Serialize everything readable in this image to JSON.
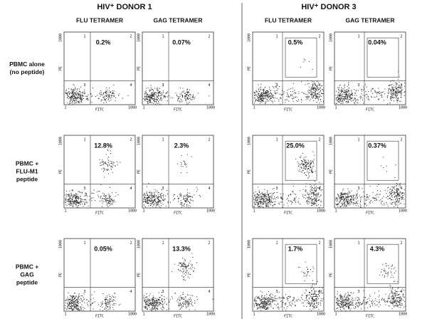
{
  "donors": [
    {
      "title": "HIV⁺ DONOR 1",
      "columns": [
        "FLU TETRAMER",
        "GAG TETRAMER"
      ]
    },
    {
      "title": "HIV⁺ DONOR 3",
      "columns": [
        "FLU TETRAMER",
        "GAG TETRAMER"
      ]
    }
  ],
  "rows": [
    {
      "label": [
        "PBMC alone",
        "(no peptide)"
      ],
      "percents": [
        "0.2%",
        "0.07%",
        "0.5%",
        "0.04%"
      ]
    },
    {
      "label": [
        "PBMC +",
        "FLU-M1",
        "peptide"
      ],
      "percents": [
        "12.8%",
        "2.3%",
        "25.0%",
        "0.37%"
      ]
    },
    {
      "label": [
        "PBMC +",
        "GAG",
        "peptide"
      ],
      "percents": [
        "0.05%",
        "13.3%",
        "1.7%",
        "4.3%"
      ]
    }
  ],
  "axis": {
    "x_label": "FITC",
    "y_label": "PE",
    "min_label": "1",
    "max_label": "1000",
    "quadrants": [
      "1",
      "2",
      "3",
      "4"
    ]
  }
}
